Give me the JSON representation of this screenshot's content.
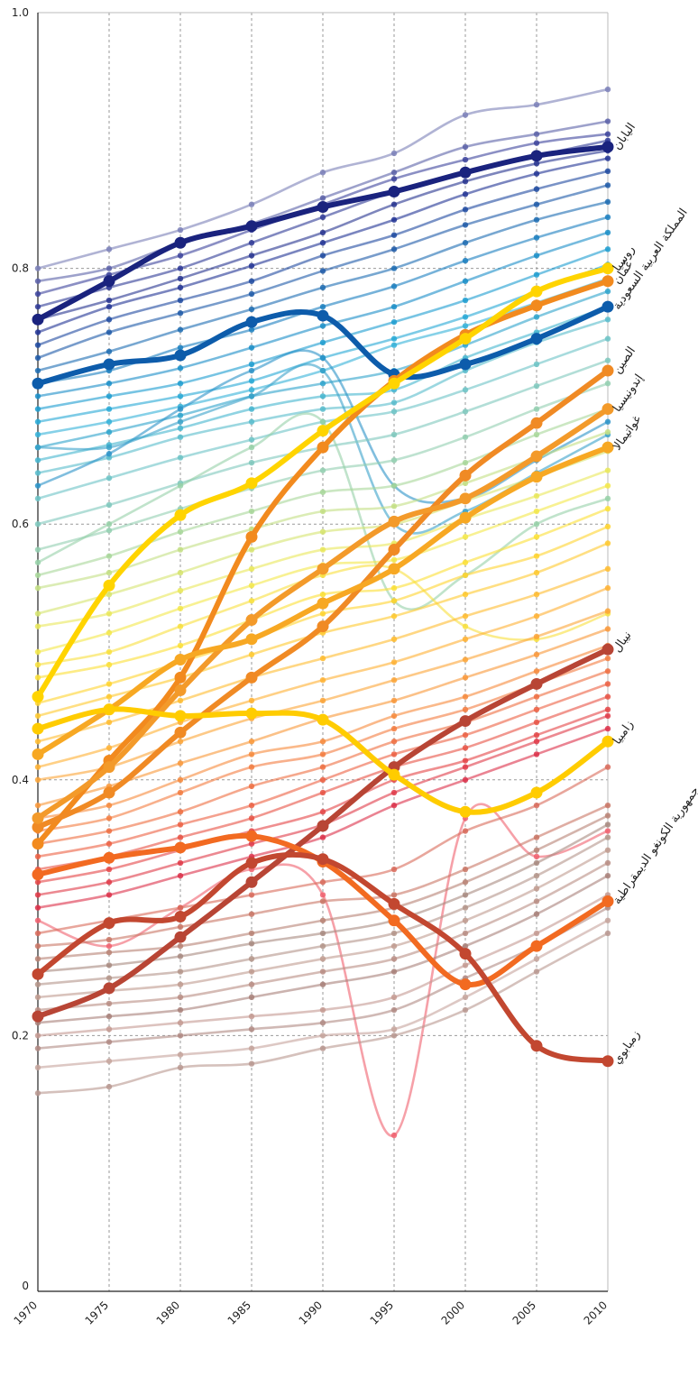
{
  "chart_data": {
    "type": "line",
    "title": "",
    "xlabel": "",
    "ylabel": "",
    "x": [
      1970,
      1975,
      1980,
      1985,
      1990,
      1995,
      2000,
      2005,
      2010
    ],
    "x_tick_labels": [
      "1970",
      "1975",
      "1980",
      "1985",
      "1990",
      "1995",
      "2000",
      "2005",
      "2010"
    ],
    "y_tick_labels": [
      "0",
      "0.2",
      "0.4",
      "0.6",
      "0.8",
      "1.0"
    ],
    "ylim": [
      0,
      1.0
    ],
    "grid": true,
    "highlighted_series": [
      {
        "name": "اليابان",
        "color": "#1a237e",
        "values": [
          0.76,
          0.79,
          0.82,
          0.833,
          0.848,
          0.86,
          0.875,
          0.888,
          0.895
        ]
      },
      {
        "name": "المملكة العربية السعودية",
        "color": "#0d5cab",
        "values": [
          0.71,
          0.725,
          0.732,
          0.758,
          0.763,
          0.717,
          0.725,
          0.745,
          0.77
        ]
      },
      {
        "name": "عُمان",
        "color": "#f28a1e",
        "values": [
          0.35,
          0.415,
          0.48,
          0.59,
          0.66,
          0.712,
          0.748,
          0.771,
          0.79
        ]
      },
      {
        "name": "روسيا",
        "color": "#ffd400",
        "values": [
          0.465,
          0.552,
          0.607,
          0.632,
          0.673,
          0.71,
          0.745,
          0.782,
          0.8
        ]
      },
      {
        "name": "الصين",
        "color": "#f08a24",
        "values": [
          0.363,
          0.39,
          0.437,
          0.48,
          0.52,
          0.58,
          0.638,
          0.679,
          0.72
        ]
      },
      {
        "name": "إندونيسيا",
        "color": "#f39a2a",
        "values": [
          0.37,
          0.41,
          0.47,
          0.525,
          0.565,
          0.602,
          0.62,
          0.653,
          0.69
        ]
      },
      {
        "name": "غواتيمالا",
        "color": "#f7a823",
        "values": [
          0.42,
          0.455,
          0.494,
          0.51,
          0.538,
          0.565,
          0.605,
          0.637,
          0.66
        ]
      },
      {
        "name": "نيبال",
        "color": "#b84535",
        "values": [
          0.215,
          0.237,
          0.277,
          0.32,
          0.364,
          0.41,
          0.446,
          0.475,
          0.502
        ]
      },
      {
        "name": "زامبيا",
        "color": "#ffcc00",
        "values": [
          0.44,
          0.455,
          0.45,
          0.452,
          0.447,
          0.404,
          0.375,
          0.39,
          0.43
        ]
      },
      {
        "name": "جمهورية الكونغو الديمقراطية",
        "color": "#f26a21",
        "values": [
          0.326,
          0.339,
          0.347,
          0.356,
          0.336,
          0.29,
          0.24,
          0.27,
          0.305
        ]
      },
      {
        "name": "زمبابوي",
        "color": "#c24730",
        "values": [
          0.248,
          0.288,
          0.293,
          0.335,
          0.338,
          0.303,
          0.264,
          0.192,
          0.18
        ]
      }
    ],
    "background_series": [
      {
        "color": "#7b80b8",
        "values": [
          0.8,
          0.815,
          0.83,
          0.85,
          0.875,
          0.89,
          0.92,
          0.928,
          0.94
        ]
      },
      {
        "color": "#5c62a8",
        "values": [
          0.79,
          0.8,
          0.82,
          0.835,
          0.855,
          0.875,
          0.895,
          0.905,
          0.915
        ]
      },
      {
        "color": "#3d449c",
        "values": [
          0.78,
          0.795,
          0.81,
          0.83,
          0.85,
          0.87,
          0.885,
          0.898,
          0.905
        ]
      },
      {
        "color": "#2f3a96",
        "values": [
          0.77,
          0.785,
          0.8,
          0.82,
          0.84,
          0.86,
          0.875,
          0.888,
          0.9
        ]
      },
      {
        "color": "#27348f",
        "values": [
          0.76,
          0.775,
          0.792,
          0.81,
          0.828,
          0.85,
          0.868,
          0.882,
          0.892
        ]
      },
      {
        "color": "#223494",
        "values": [
          0.75,
          0.77,
          0.785,
          0.802,
          0.82,
          0.838,
          0.858,
          0.874,
          0.886
        ]
      },
      {
        "color": "#1f4aa0",
        "values": [
          0.74,
          0.76,
          0.775,
          0.79,
          0.81,
          0.826,
          0.846,
          0.862,
          0.876
        ]
      },
      {
        "color": "#1e5aa8",
        "values": [
          0.73,
          0.75,
          0.765,
          0.78,
          0.798,
          0.815,
          0.834,
          0.85,
          0.865
        ]
      },
      {
        "color": "#1d6cb2",
        "values": [
          0.72,
          0.735,
          0.752,
          0.768,
          0.785,
          0.8,
          0.82,
          0.838,
          0.852
        ]
      },
      {
        "color": "#1b7fbf",
        "values": [
          0.71,
          0.72,
          0.738,
          0.752,
          0.77,
          0.786,
          0.806,
          0.824,
          0.84
        ]
      },
      {
        "color": "#1a8ec8",
        "values": [
          0.7,
          0.71,
          0.722,
          0.738,
          0.755,
          0.77,
          0.79,
          0.81,
          0.828
        ]
      },
      {
        "color": "#1d9dd0",
        "values": [
          0.69,
          0.7,
          0.71,
          0.725,
          0.742,
          0.758,
          0.775,
          0.795,
          0.815
        ]
      },
      {
        "color": "#27a9d6",
        "values": [
          0.68,
          0.69,
          0.7,
          0.712,
          0.73,
          0.745,
          0.762,
          0.782,
          0.803
        ]
      },
      {
        "color": "#35b2d8",
        "values": [
          0.67,
          0.68,
          0.692,
          0.705,
          0.72,
          0.74,
          0.755,
          0.773,
          0.792
        ]
      },
      {
        "color": "#2fa4cc",
        "values": [
          0.66,
          0.672,
          0.685,
          0.7,
          0.71,
          0.72,
          0.74,
          0.762,
          0.782
        ]
      },
      {
        "color": "#45b5cf",
        "values": [
          0.65,
          0.662,
          0.675,
          0.69,
          0.7,
          0.705,
          0.73,
          0.75,
          0.77
        ]
      },
      {
        "color": "#58bccc",
        "values": [
          0.64,
          0.652,
          0.668,
          0.68,
          0.69,
          0.695,
          0.72,
          0.742,
          0.76
        ]
      },
      {
        "color": "#2b93c8",
        "values": [
          0.63,
          0.655,
          0.69,
          0.72,
          0.73,
          0.63,
          0.62,
          0.65,
          0.68
        ]
      },
      {
        "color": "#3aa2c9",
        "values": [
          0.66,
          0.66,
          0.68,
          0.7,
          0.72,
          0.6,
          0.61,
          0.64,
          0.67
        ]
      },
      {
        "color": "#6cc3c6",
        "values": [
          0.62,
          0.636,
          0.652,
          0.666,
          0.68,
          0.688,
          0.705,
          0.725,
          0.745
        ]
      },
      {
        "color": "#7fc8bd",
        "values": [
          0.6,
          0.615,
          0.632,
          0.648,
          0.66,
          0.67,
          0.688,
          0.708,
          0.728
        ]
      },
      {
        "color": "#93cfb0",
        "values": [
          0.58,
          0.595,
          0.612,
          0.628,
          0.642,
          0.65,
          0.668,
          0.69,
          0.71
        ]
      },
      {
        "color": "#96d1a8",
        "values": [
          0.57,
          0.6,
          0.63,
          0.66,
          0.68,
          0.54,
          0.56,
          0.6,
          0.62
        ]
      },
      {
        "color": "#a8d79a",
        "values": [
          0.56,
          0.575,
          0.594,
          0.61,
          0.625,
          0.63,
          0.648,
          0.67,
          0.69
        ]
      },
      {
        "color": "#c3df84",
        "values": [
          0.55,
          0.562,
          0.58,
          0.596,
          0.61,
          0.614,
          0.632,
          0.652,
          0.672
        ]
      },
      {
        "color": "#d6e46f",
        "values": [
          0.53,
          0.545,
          0.562,
          0.58,
          0.594,
          0.6,
          0.618,
          0.637,
          0.657
        ]
      },
      {
        "color": "#e9e85a",
        "values": [
          0.52,
          0.53,
          0.548,
          0.565,
          0.58,
          0.585,
          0.604,
          0.622,
          0.642
        ]
      },
      {
        "color": "#f3e84a",
        "values": [
          0.5,
          0.515,
          0.534,
          0.552,
          0.568,
          0.572,
          0.59,
          0.61,
          0.63
        ]
      },
      {
        "color": "#f8e03d",
        "values": [
          0.49,
          0.5,
          0.52,
          0.54,
          0.56,
          0.565,
          0.52,
          0.51,
          0.53
        ]
      },
      {
        "color": "#fce036",
        "values": [
          0.48,
          0.49,
          0.505,
          0.525,
          0.545,
          0.55,
          0.57,
          0.59,
          0.612
        ]
      },
      {
        "color": "#ffd42e",
        "values": [
          0.46,
          0.475,
          0.492,
          0.51,
          0.53,
          0.54,
          0.56,
          0.575,
          0.598
        ]
      },
      {
        "color": "#ffc92e",
        "values": [
          0.45,
          0.465,
          0.48,
          0.498,
          0.515,
          0.528,
          0.545,
          0.562,
          0.585
        ]
      },
      {
        "color": "#ffbc30",
        "values": [
          0.43,
          0.445,
          0.462,
          0.48,
          0.495,
          0.51,
          0.528,
          0.545,
          0.565
        ]
      },
      {
        "color": "#ffb133",
        "values": [
          0.41,
          0.425,
          0.445,
          0.462,
          0.478,
          0.492,
          0.51,
          0.528,
          0.55
        ]
      },
      {
        "color": "#fca537",
        "values": [
          0.4,
          0.41,
          0.43,
          0.448,
          0.462,
          0.478,
          0.494,
          0.512,
          0.532
        ]
      },
      {
        "color": "#f99839",
        "values": [
          0.38,
          0.395,
          0.413,
          0.43,
          0.448,
          0.462,
          0.48,
          0.498,
          0.518
        ]
      },
      {
        "color": "#f68a3c",
        "values": [
          0.37,
          0.38,
          0.4,
          0.42,
          0.43,
          0.45,
          0.465,
          0.485,
          0.505
        ]
      },
      {
        "color": "#f37c40",
        "values": [
          0.36,
          0.37,
          0.39,
          0.41,
          0.42,
          0.44,
          0.455,
          0.475,
          0.495
        ]
      },
      {
        "color": "#ef6e41",
        "values": [
          0.35,
          0.36,
          0.375,
          0.395,
          0.41,
          0.43,
          0.445,
          0.465,
          0.485
        ]
      },
      {
        "color": "#ec6043",
        "values": [
          0.34,
          0.35,
          0.365,
          0.38,
          0.4,
          0.42,
          0.435,
          0.455,
          0.475
        ]
      },
      {
        "color": "#e85244",
        "values": [
          0.33,
          0.34,
          0.355,
          0.37,
          0.39,
          0.41,
          0.425,
          0.445,
          0.465
        ]
      },
      {
        "color": "#e44546",
        "values": [
          0.32,
          0.33,
          0.345,
          0.36,
          0.375,
          0.4,
          0.415,
          0.435,
          0.455
        ]
      },
      {
        "color": "#e03a48",
        "values": [
          0.31,
          0.32,
          0.335,
          0.35,
          0.365,
          0.39,
          0.41,
          0.43,
          0.45
        ]
      },
      {
        "color": "#dc3049",
        "values": [
          0.3,
          0.31,
          0.325,
          0.34,
          0.355,
          0.38,
          0.4,
          0.42,
          0.44
        ]
      },
      {
        "color": "#f0606e",
        "values": [
          0.29,
          0.27,
          0.3,
          0.33,
          0.31,
          0.122,
          0.37,
          0.34,
          0.36
        ]
      },
      {
        "color": "#d86a5a",
        "values": [
          0.28,
          0.29,
          0.3,
          0.31,
          0.32,
          0.33,
          0.36,
          0.38,
          0.41
        ]
      },
      {
        "color": "#c97665",
        "values": [
          0.27,
          0.275,
          0.285,
          0.295,
          0.305,
          0.31,
          0.33,
          0.355,
          0.38
        ]
      },
      {
        "color": "#b88274",
        "values": [
          0.26,
          0.265,
          0.27,
          0.28,
          0.29,
          0.3,
          0.32,
          0.345,
          0.372
        ]
      },
      {
        "color": "#a88a80",
        "values": [
          0.25,
          0.255,
          0.262,
          0.272,
          0.28,
          0.29,
          0.31,
          0.335,
          0.365
        ]
      },
      {
        "color": "#b4958a",
        "values": [
          0.24,
          0.245,
          0.25,
          0.26,
          0.27,
          0.28,
          0.3,
          0.325,
          0.355
        ]
      },
      {
        "color": "#c09b8f",
        "values": [
          0.23,
          0.235,
          0.24,
          0.25,
          0.26,
          0.27,
          0.29,
          0.315,
          0.345
        ]
      },
      {
        "color": "#b98d84",
        "values": [
          0.22,
          0.225,
          0.23,
          0.24,
          0.25,
          0.26,
          0.28,
          0.305,
          0.335
        ]
      },
      {
        "color": "#a88079",
        "values": [
          0.21,
          0.215,
          0.22,
          0.23,
          0.24,
          0.25,
          0.27,
          0.295,
          0.325
        ]
      },
      {
        "color": "#c49a92",
        "values": [
          0.2,
          0.205,
          0.21,
          0.215,
          0.22,
          0.23,
          0.255,
          0.28,
          0.31
        ]
      },
      {
        "color": "#b08a84",
        "values": [
          0.19,
          0.195,
          0.2,
          0.205,
          0.21,
          0.22,
          0.245,
          0.27,
          0.3
        ]
      },
      {
        "color": "#c6a49c",
        "values": [
          0.175,
          0.18,
          0.185,
          0.19,
          0.2,
          0.205,
          0.23,
          0.26,
          0.29
        ]
      },
      {
        "color": "#b99890",
        "values": [
          0.155,
          0.16,
          0.175,
          0.178,
          0.19,
          0.2,
          0.22,
          0.25,
          0.28
        ]
      }
    ]
  }
}
